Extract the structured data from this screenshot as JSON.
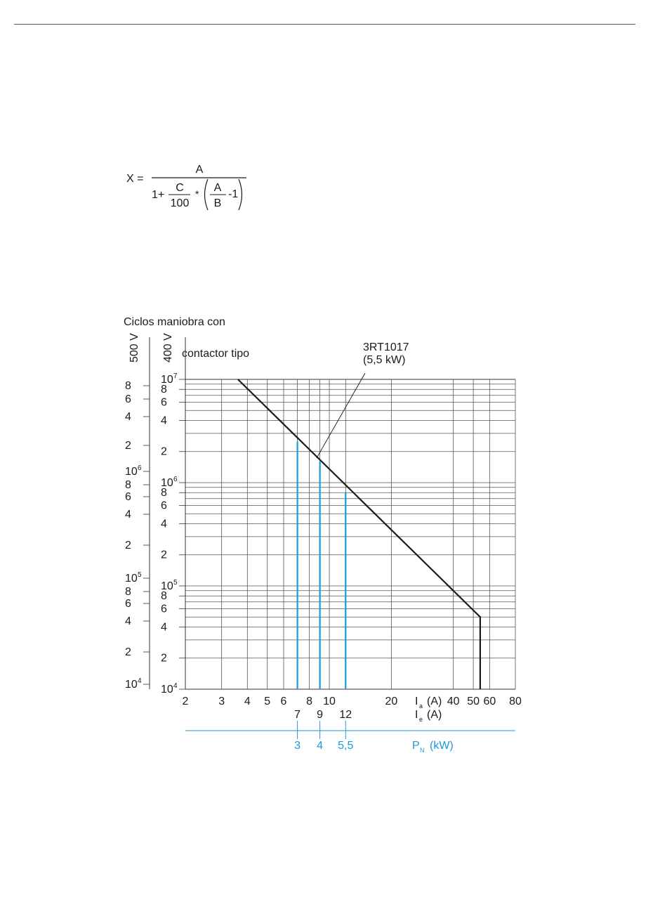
{
  "formula": {
    "lhs": "X =",
    "numerator": "A",
    "one_plus": "1+",
    "c_num": "C",
    "c_den": "100",
    "times": "*",
    "a_num": "A",
    "b_den": "B",
    "minus_one": "-1"
  },
  "chart_data": {
    "type": "line",
    "title": "Ciclos maniobra con",
    "left_axis_500V": {
      "label": "500 V",
      "ticks": [
        {
          "label": "8",
          "exp": ""
        },
        {
          "label": "6",
          "exp": ""
        },
        {
          "label": "4",
          "exp": ""
        },
        {
          "label": "2",
          "exp": ""
        },
        {
          "label": "10",
          "exp": "6"
        },
        {
          "label": "8",
          "exp": ""
        },
        {
          "label": "6",
          "exp": ""
        },
        {
          "label": "4",
          "exp": ""
        },
        {
          "label": "2",
          "exp": ""
        },
        {
          "label": "10",
          "exp": "5"
        },
        {
          "label": "8",
          "exp": ""
        },
        {
          "label": "6",
          "exp": ""
        },
        {
          "label": "4",
          "exp": ""
        },
        {
          "label": "2",
          "exp": ""
        },
        {
          "label": "10",
          "exp": "4"
        }
      ]
    },
    "left_axis_400V": {
      "label": "400 V",
      "scale": "log",
      "ylim": [
        10000,
        10000000
      ],
      "ticks": [
        {
          "label": "10",
          "exp": "7"
        },
        {
          "label": "8",
          "exp": ""
        },
        {
          "label": "6",
          "exp": ""
        },
        {
          "label": "4",
          "exp": ""
        },
        {
          "label": "2",
          "exp": ""
        },
        {
          "label": "10",
          "exp": "6"
        },
        {
          "label": "8",
          "exp": ""
        },
        {
          "label": "6",
          "exp": ""
        },
        {
          "label": "4",
          "exp": ""
        },
        {
          "label": "2",
          "exp": ""
        },
        {
          "label": "10",
          "exp": "5"
        },
        {
          "label": "8",
          "exp": ""
        },
        {
          "label": "6",
          "exp": ""
        },
        {
          "label": "4",
          "exp": ""
        },
        {
          "label": "2",
          "exp": ""
        },
        {
          "label": "10",
          "exp": "4"
        }
      ]
    },
    "x_axis_Ia": {
      "label": "I",
      "sub": "a",
      "unit": "(A)",
      "scale": "log",
      "xlim": [
        2,
        80
      ],
      "ticks": [
        "2",
        "3",
        "4",
        "5",
        "6",
        "8",
        "10",
        "20",
        "40",
        "50",
        "60",
        "80"
      ]
    },
    "x_axis_Ie": {
      "label": "I",
      "sub": "e",
      "unit": "(A)",
      "ticks": [
        "7",
        "9",
        "12"
      ]
    },
    "x_axis_PN": {
      "label": "P",
      "sub": "N",
      "unit": "(kW)",
      "ticks": [
        "3",
        "4",
        "5,5"
      ]
    },
    "annotation_type": "contactor tipo",
    "annotation_model": "3RT1017",
    "annotation_power": "(5,5 kW)",
    "series": [
      {
        "x": [
          3.6,
          54,
          54
        ],
        "y": [
          10000000,
          50000,
          10000
        ]
      }
    ],
    "markers": [
      {
        "Ie": 7,
        "PN": "3",
        "y": 2500000
      },
      {
        "Ie": 9,
        "PN": "4",
        "y": 1600000
      },
      {
        "Ie": 12,
        "PN": "5,5",
        "y": 800000
      }
    ],
    "grid": true,
    "colors": {
      "line": "#1a1a1a",
      "marker": "#1a9ad6"
    }
  }
}
